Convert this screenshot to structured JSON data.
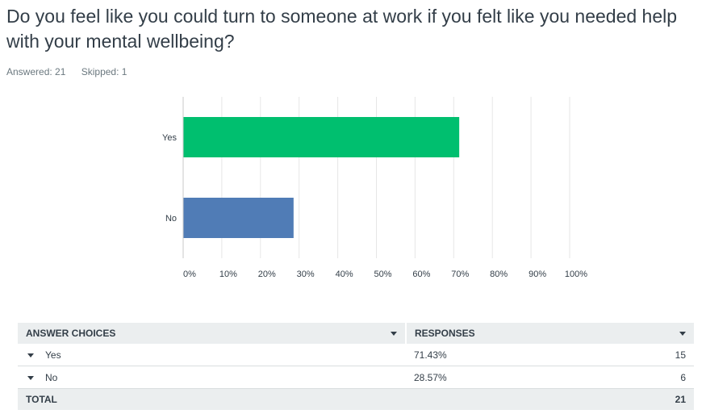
{
  "question": {
    "title": "Do you feel like you could turn to someone at work if you felt like you needed help with your mental wellbeing?",
    "answered_label": "Answered: 21",
    "skipped_label": "Skipped: 1"
  },
  "chart_data": {
    "type": "bar",
    "orientation": "horizontal",
    "categories": [
      "Yes",
      "No"
    ],
    "values": [
      71.43,
      28.57
    ],
    "colors": [
      "#00bf6f",
      "#507cb6"
    ],
    "xlim": [
      0,
      100
    ],
    "xticks": [
      "0%",
      "10%",
      "20%",
      "30%",
      "40%",
      "50%",
      "60%",
      "70%",
      "80%",
      "90%",
      "100%"
    ],
    "grid": true
  },
  "table": {
    "headers": {
      "choices": "ANSWER CHOICES",
      "responses": "RESPONSES"
    },
    "rows": [
      {
        "label": "Yes",
        "percent": "71.43%",
        "count": "15"
      },
      {
        "label": "No",
        "percent": "28.57%",
        "count": "6"
      }
    ],
    "total": {
      "label": "TOTAL",
      "count": "21"
    }
  }
}
